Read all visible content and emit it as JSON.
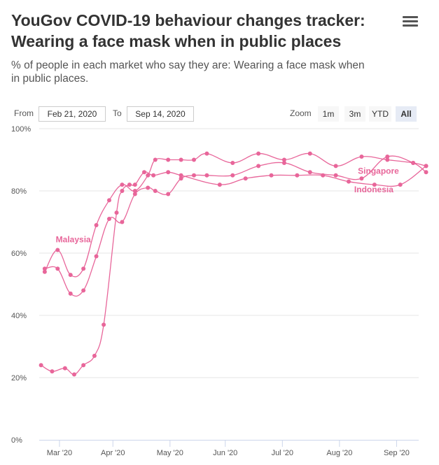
{
  "header": {
    "title": "YouGov COVID-19 behaviour changes tracker: Wearing a face mask when in public places",
    "subtitle": "% of people in each market who say they are: Wearing a face mask when in public places."
  },
  "range": {
    "from_label": "From",
    "from_value": "Feb 21, 2020",
    "to_label": "To",
    "to_value": "Sep 14, 2020"
  },
  "zoom": {
    "label": "Zoom",
    "buttons": [
      "1m",
      "3m",
      "YTD",
      "All"
    ],
    "active": "All"
  },
  "colors": {
    "series": "#e8669a",
    "grid": "#e6e6e6"
  },
  "chart_data": {
    "type": "line",
    "title": "YouGov COVID-19 behaviour changes tracker: Wearing a face mask when in public places",
    "ylim": [
      0,
      100
    ],
    "yticks": [
      0,
      20,
      40,
      60,
      80,
      100
    ],
    "ytick_labels": [
      "0%",
      "20%",
      "40%",
      "60%",
      "80%",
      "100%"
    ],
    "x_start": "2020-02-21",
    "x_end": "2020-09-14",
    "xtick_days": [
      11,
      40,
      71,
      101,
      132,
      163,
      194
    ],
    "xtick_labels": [
      "Mar '20",
      "Apr '20",
      "May '20",
      "Jun '20",
      "Jul '20",
      "Aug '20",
      "Sep '20"
    ],
    "series": [
      {
        "name": "Malaysia",
        "x_days": [
          3,
          10,
          17,
          24,
          31,
          38,
          45,
          52,
          59,
          63,
          70,
          77,
          84,
          91,
          105,
          119,
          133,
          147,
          161,
          175,
          189,
          203,
          210
        ],
        "values": [
          54,
          61,
          53,
          55,
          69,
          77,
          82,
          80,
          85,
          90,
          90,
          90,
          90,
          92,
          89,
          92,
          90,
          92,
          88,
          91,
          90,
          89,
          88
        ]
      },
      {
        "name": "Singapore",
        "x_days": [
          3,
          10,
          17,
          24,
          31,
          38,
          45,
          52,
          59,
          63,
          70,
          77,
          84,
          91,
          105,
          119,
          133,
          147,
          161,
          175,
          189,
          203,
          210
        ],
        "values": [
          55,
          55,
          47,
          48,
          59,
          71,
          70,
          79,
          81,
          80,
          79,
          84,
          85,
          85,
          85,
          88,
          89,
          86,
          85,
          84,
          91,
          89,
          86
        ]
      },
      {
        "name": "Indonesia",
        "x_days": [
          1,
          7,
          14,
          19,
          24,
          30,
          35,
          42,
          45,
          49,
          52,
          57,
          62,
          70,
          77,
          98,
          112,
          126,
          140,
          154,
          168,
          182,
          196,
          210
        ],
        "values": [
          24,
          22,
          23,
          21,
          24,
          27,
          37,
          73,
          80,
          82,
          82,
          86,
          85,
          86,
          85,
          82,
          84,
          85,
          85,
          85,
          83,
          82,
          82,
          88
        ]
      }
    ],
    "label_positions": [
      "left-mid",
      "right-upper",
      "right-lower"
    ]
  }
}
